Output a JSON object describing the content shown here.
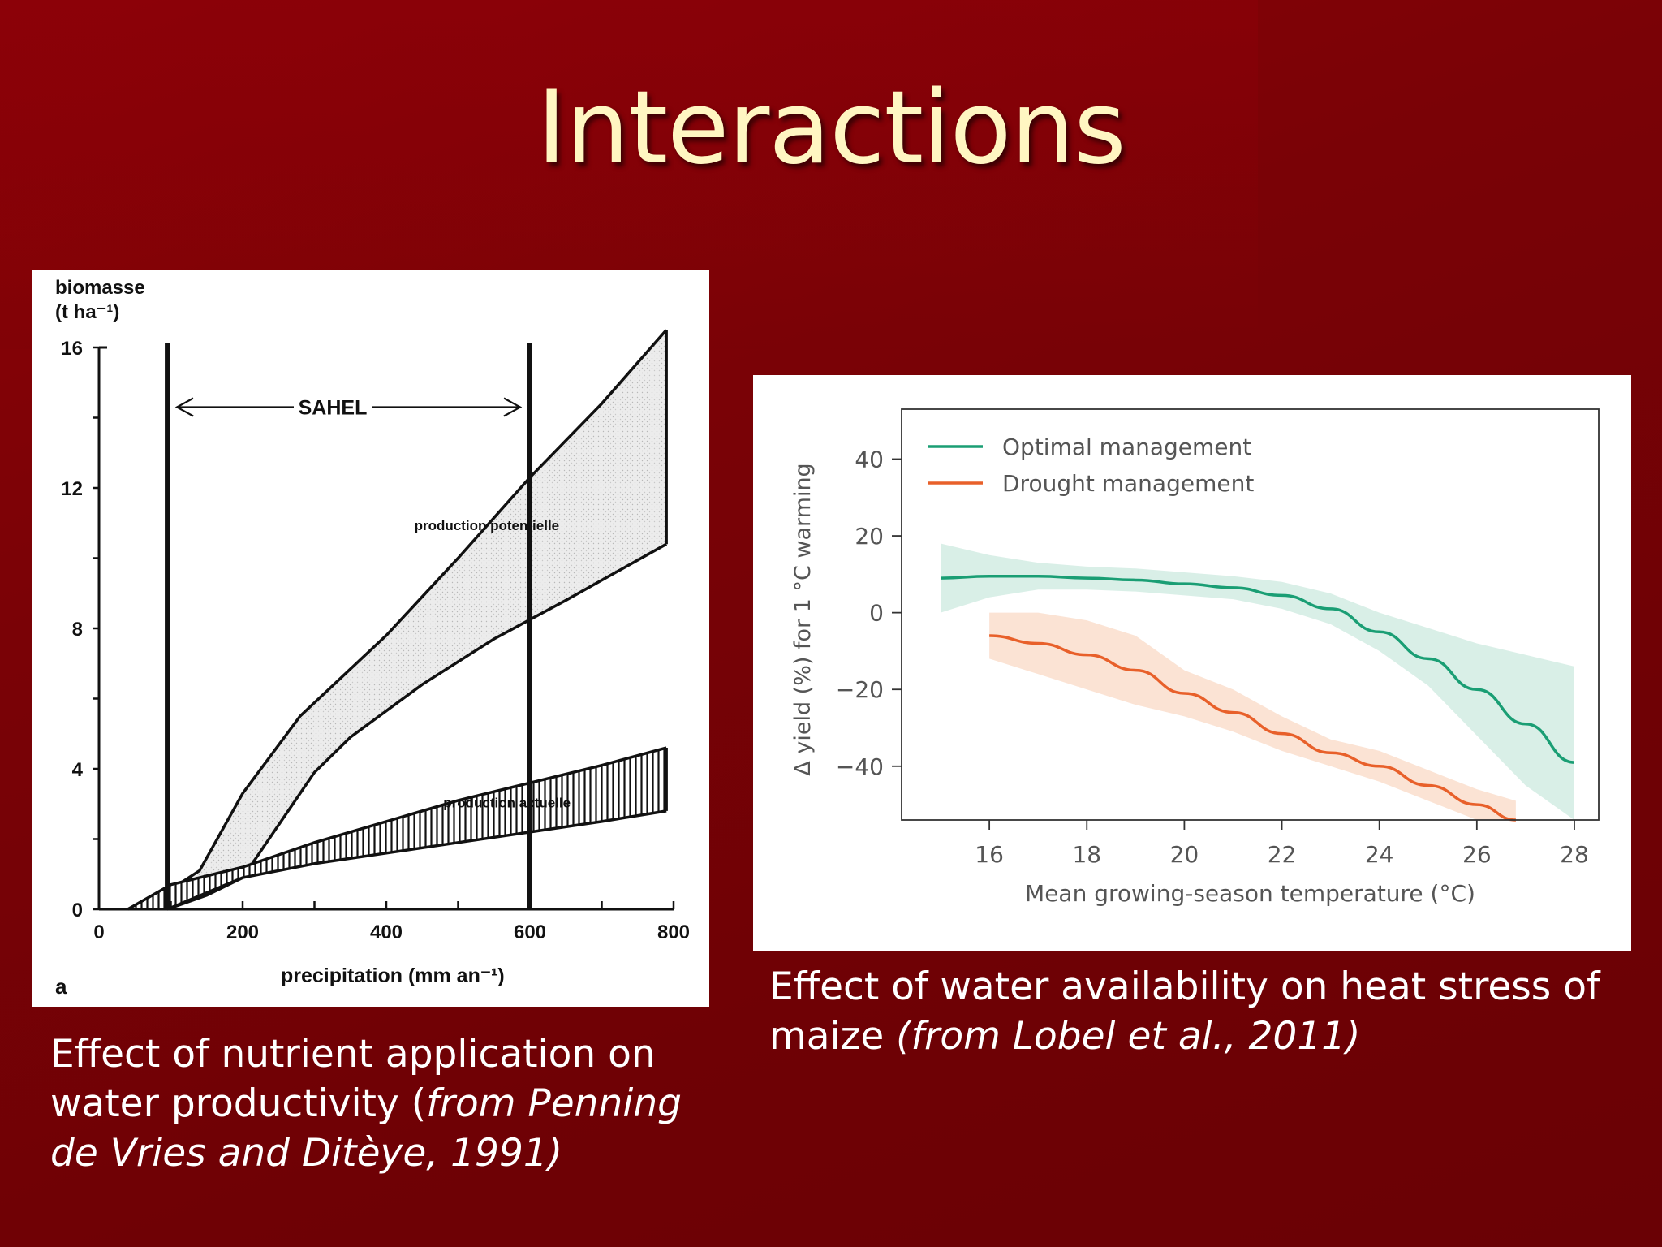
{
  "slide": {
    "title": "Interactions",
    "colors": {
      "background": "#7a0206",
      "title": "#fff6c2",
      "caption": "#ffffff"
    }
  },
  "caption_left": {
    "line1": "Effect of nutrient application on",
    "line2_plain": "water productivity (",
    "line2_italic": "from Penning",
    "line3_italic": "de Vries and Ditèye, 1991)"
  },
  "caption_right": {
    "line1": "Effect of water availability on heat stress of",
    "line2_plain": "maize ",
    "line2_italic": "(from Lobel et al., 2011)"
  },
  "chart_data": [
    {
      "type": "area",
      "panel_label": "a",
      "ylabel_line1": "biomasse",
      "ylabel_line2": "(t ha⁻¹)",
      "xlabel": "precipitation (mm an⁻¹)",
      "xlim": [
        0,
        800
      ],
      "ylim": [
        0,
        16
      ],
      "xticks": [
        "0",
        "200",
        "400",
        "600",
        "800"
      ],
      "xtick_values": [
        0,
        200,
        400,
        600,
        800
      ],
      "yticks": [
        "0",
        "4",
        "8",
        "12",
        "16"
      ],
      "ytick_values": [
        0,
        4,
        8,
        12,
        16
      ],
      "annotation": "SAHEL",
      "sahel_range": [
        95,
        600
      ],
      "series": [
        {
          "name": "production potentielle",
          "fill": "light-grey stipple",
          "upper": {
            "x": [
              40,
              95,
              140,
              200,
              280,
              400,
              500,
              600,
              700,
              790
            ],
            "y": [
              0,
              0.5,
              1.1,
              3.3,
              5.5,
              7.8,
              10.0,
              12.3,
              14.4,
              16.5
            ]
          },
          "lower": {
            "x": [
              95,
              150,
              200,
              250,
              300,
              350,
              450,
              550,
              650,
              790
            ],
            "y": [
              0,
              0.4,
              0.9,
              2.4,
              3.9,
              4.9,
              6.4,
              7.7,
              8.8,
              10.4
            ]
          }
        },
        {
          "name": "production actuelle",
          "fill": "vertical hatching",
          "upper": {
            "x": [
              40,
              100,
              200,
              300,
              400,
              500,
              600,
              700,
              790
            ],
            "y": [
              0,
              0.7,
              1.2,
              1.9,
              2.5,
              3.1,
              3.6,
              4.1,
              4.6
            ]
          },
          "lower": {
            "x": [
              95,
              200,
              300,
              400,
              500,
              600,
              700,
              790
            ],
            "y": [
              0,
              0.9,
              1.3,
              1.6,
              1.9,
              2.2,
              2.5,
              2.8
            ]
          }
        }
      ]
    },
    {
      "type": "line",
      "xlabel": "Mean growing-season temperature (°C)",
      "ylabel": "Δ yield (%) for 1 °C warming",
      "xlim": [
        14.2,
        28.5
      ],
      "ylim": [
        -54,
        53
      ],
      "xticks": [
        "16",
        "18",
        "20",
        "22",
        "24",
        "26",
        "28"
      ],
      "xtick_values": [
        16,
        18,
        20,
        22,
        24,
        26,
        28
      ],
      "yticks": [
        "40",
        "20",
        "0",
        "−20",
        "−40"
      ],
      "ytick_values": [
        40,
        20,
        0,
        -20,
        -40
      ],
      "legend": "top-left",
      "series": [
        {
          "name": "Optimal management",
          "color": "#1a9e74",
          "band_color": "#d7eee6",
          "x": [
            15,
            16,
            17,
            18,
            19,
            20,
            21,
            22,
            23,
            24,
            25,
            26,
            27,
            28
          ],
          "y": [
            9,
            9.5,
            9.5,
            9,
            8.5,
            7.5,
            6.5,
            4.5,
            1,
            -5,
            -12,
            -20,
            -29,
            -39
          ],
          "upper": [
            18,
            15,
            13,
            12,
            11.5,
            10.5,
            9.5,
            8,
            5,
            0,
            -4,
            -8,
            -11,
            -14
          ],
          "lower": [
            0,
            4,
            6,
            6,
            5.5,
            4.5,
            3.5,
            1,
            -3,
            -10,
            -19,
            -32,
            -45,
            -55
          ]
        },
        {
          "name": "Drought management",
          "color": "#e8602a",
          "band_color": "#fbe2d2",
          "x": [
            16,
            17,
            18,
            19,
            20,
            21,
            22,
            23,
            24,
            25,
            26,
            26.8
          ],
          "y": [
            -6,
            -8,
            -11,
            -15,
            -21,
            -26,
            -31.5,
            -36.5,
            -40,
            -45,
            -50,
            -54
          ],
          "upper": [
            0,
            0,
            -2,
            -6,
            -15,
            -20,
            -27,
            -33,
            -36,
            -41,
            -46,
            -49
          ],
          "lower": [
            -12,
            -16,
            -20,
            -24,
            -27,
            -31,
            -36,
            -40,
            -44,
            -49,
            -54,
            -56
          ]
        }
      ]
    }
  ]
}
